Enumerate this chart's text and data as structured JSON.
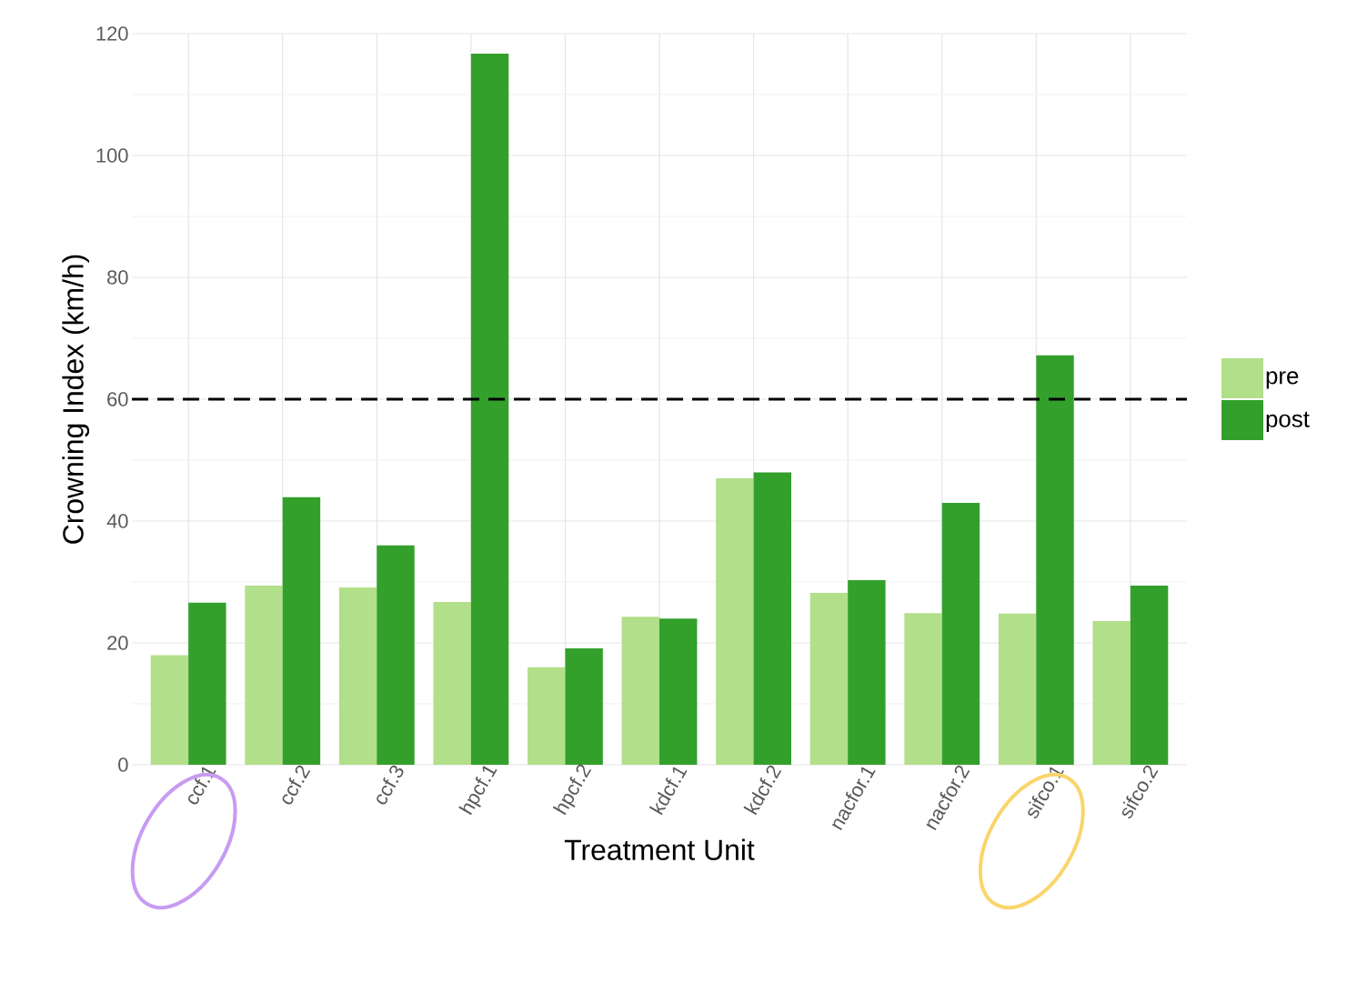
{
  "chart_data": {
    "type": "bar",
    "xlabel": "Treatment Unit",
    "ylabel": "Crowning Index (km/h)",
    "categories": [
      "ccf.1",
      "ccf.2",
      "ccf.3",
      "hpcf.1",
      "hpcf.2",
      "kdcf.1",
      "kdcf.2",
      "nacfor.1",
      "nacfor.2",
      "sifco.1",
      "sifco.2"
    ],
    "series": [
      {
        "name": "pre",
        "color": "#b2df8a",
        "values": [
          18,
          29.4,
          29.1,
          26.7,
          16,
          24.3,
          47,
          28.2,
          24.9,
          24.8,
          23.6
        ]
      },
      {
        "name": "post",
        "color": "#33a02c",
        "values": [
          26.6,
          43.9,
          36,
          116.7,
          19.1,
          24,
          48,
          30.3,
          43,
          67.2,
          29.4
        ]
      }
    ],
    "ylim": [
      0,
      120
    ],
    "yticks": [
      0,
      20,
      40,
      60,
      80,
      100,
      120
    ],
    "grid": true,
    "legend": "right",
    "ref_lines": [
      {
        "axis": "y",
        "value": 60,
        "color": "#000000",
        "line_style": "dashed"
      }
    ]
  }
}
